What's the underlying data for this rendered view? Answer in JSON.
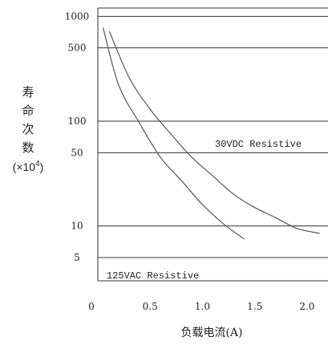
{
  "chart_data": {
    "type": "line",
    "title": "",
    "xlabel": "负载电流(A)",
    "ylabel": {
      "chars": [
        "寿",
        "命",
        "次",
        "数"
      ],
      "unit_prefix": "(×10",
      "unit_exp": "4",
      "unit_suffix": ")"
    },
    "xlim": [
      0,
      2.2
    ],
    "ylim": [
      3,
      1200
    ],
    "yscale": "log",
    "x_ticks": [
      {
        "value": 0,
        "label": "0"
      },
      {
        "value": 0.5,
        "label": "0.5"
      },
      {
        "value": 1.0,
        "label": "1.0"
      },
      {
        "value": 1.5,
        "label": "1.5"
      },
      {
        "value": 2.0,
        "label": "2.0"
      }
    ],
    "y_ticks": [
      {
        "value": 1000,
        "label": "1000"
      },
      {
        "value": 500,
        "label": "500"
      },
      {
        "value": 100,
        "label": "100"
      },
      {
        "value": 50,
        "label": "50"
      },
      {
        "value": 10,
        "label": "10"
      },
      {
        "value": 5,
        "label": "5"
      }
    ],
    "grid": true,
    "series": [
      {
        "name": "30VDC Resistive",
        "x": [
          0.11,
          0.3,
          0.5,
          0.7,
          0.9,
          1.1,
          1.3,
          1.5,
          1.7,
          1.9,
          2.12
        ],
        "y": [
          720,
          260,
          130,
          75,
          45,
          30,
          20,
          15,
          12,
          9.5,
          8.5
        ]
      },
      {
        "name": "125VAC Resistive",
        "x": [
          0.05,
          0.2,
          0.4,
          0.6,
          0.8,
          1.0,
          1.2,
          1.4
        ],
        "y": [
          780,
          220,
          95,
          45,
          27,
          16,
          10.5,
          7.5
        ]
      }
    ],
    "annotations": [
      {
        "text": "30VDC Resistive",
        "series": 0
      },
      {
        "text": "125VAC Resistive",
        "series": 1
      }
    ]
  }
}
